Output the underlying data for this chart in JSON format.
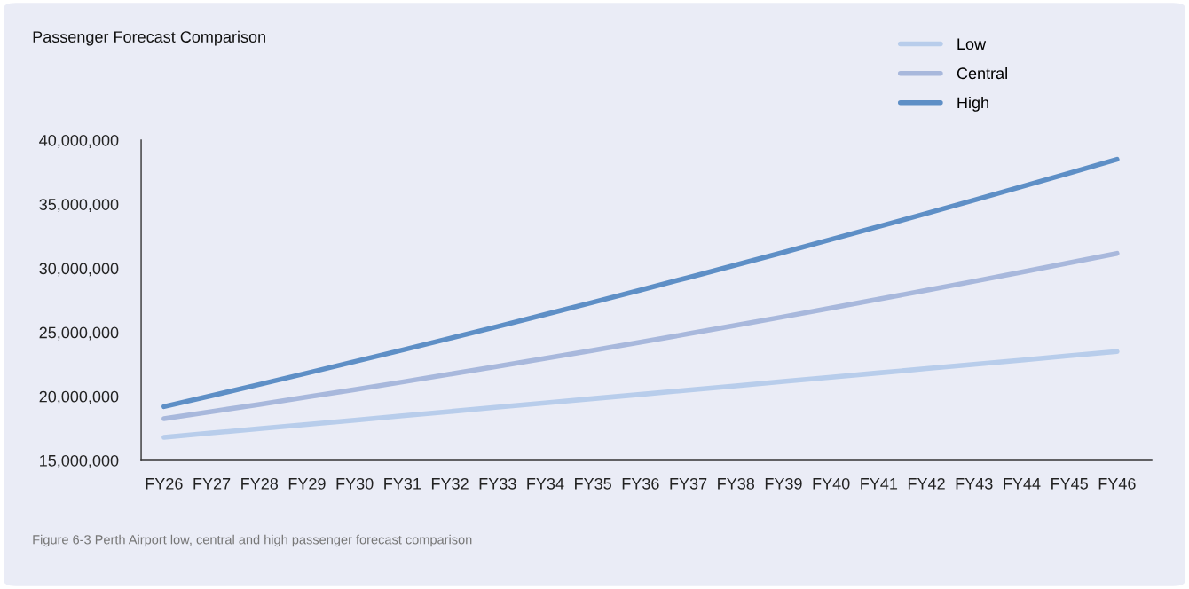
{
  "chart_data": {
    "type": "line",
    "title": "Passenger Forecast Comparison",
    "categories": [
      "FY26",
      "FY27",
      "FY28",
      "FY29",
      "FY30",
      "FY31",
      "FY32",
      "FY33",
      "FY34",
      "FY35",
      "FY36",
      "FY37",
      "FY38",
      "FY39",
      "FY40",
      "FY41",
      "FY42",
      "FY43",
      "FY44",
      "FY45",
      "FY46"
    ],
    "series": [
      {
        "name": "Low",
        "color": "#b8cdeb",
        "values": [
          16800000,
          17140000,
          17470000,
          17810000,
          18140000,
          18480000,
          18810000,
          19150000,
          19480000,
          19820000,
          20150000,
          20490000,
          20820000,
          21160000,
          21490000,
          21830000,
          22160000,
          22500000,
          22830000,
          23170000,
          23500000
        ]
      },
      {
        "name": "Central",
        "color": "#a8b8dc",
        "values": [
          18250000,
          18810000,
          19370000,
          19950000,
          20530000,
          21120000,
          21730000,
          22340000,
          22960000,
          23590000,
          24230000,
          24880000,
          25540000,
          26210000,
          26890000,
          27580000,
          28280000,
          28980000,
          29700000,
          30430000,
          31160000
        ]
      },
      {
        "name": "High",
        "color": "#5e8fc6",
        "values": [
          19200000,
          20060000,
          20930000,
          21810000,
          22710000,
          23610000,
          24530000,
          25450000,
          26390000,
          27340000,
          28300000,
          29270000,
          30250000,
          31240000,
          32250000,
          33260000,
          34280000,
          35320000,
          36370000,
          37430000,
          38500000
        ]
      }
    ],
    "ylim": [
      15000000,
      40000000
    ],
    "yticks": [
      {
        "value": 15000000,
        "label": "15,000,000"
      },
      {
        "value": 20000000,
        "label": "20,000,000"
      },
      {
        "value": 25000000,
        "label": "25,000,000"
      },
      {
        "value": 30000000,
        "label": "30,000,000"
      },
      {
        "value": 35000000,
        "label": "35,000,000"
      },
      {
        "value": 40000000,
        "label": "40,000,000"
      }
    ],
    "grid": false,
    "legend": "top right",
    "marker": "none",
    "line_style": "solid",
    "annotations": [
      "Figure 6-3 Perth Airport low, central and high passenger forecast comparison"
    ]
  }
}
